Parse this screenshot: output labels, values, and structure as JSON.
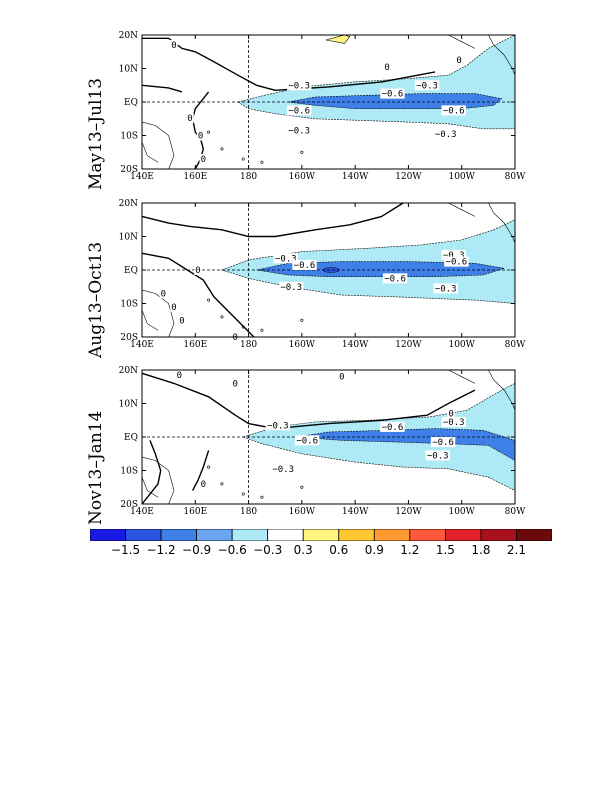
{
  "panels": [
    {
      "id": "p1",
      "label": "May13–Jul13"
    },
    {
      "id": "p2",
      "label": "Aug13–Oct13"
    },
    {
      "id": "p3",
      "label": "Nov13–Jan14"
    }
  ],
  "lat_ticks": [
    "20N",
    "10N",
    "EQ",
    "10S",
    "20S"
  ],
  "lon_ticks": [
    "140E",
    "160E",
    "180",
    "160W",
    "140W",
    "120W",
    "100W",
    "80W"
  ],
  "contour_labels": {
    "zero": "0",
    "m03": "−0.3",
    "m06": "−0.6"
  },
  "colorbar": {
    "labels": [
      "−1.5",
      "−1.2",
      "−0.9",
      "−0.6",
      "−0.3",
      "0.3",
      "0.6",
      "0.9",
      "1.2",
      "1.5",
      "1.8",
      "2.1"
    ],
    "colors": [
      "#1a1ae6",
      "#2b55e0",
      "#3f7fe8",
      "#6aa6ef",
      "#aeeaf5",
      "#ffffff",
      "#fff580",
      "#ffc833",
      "#ff9a33",
      "#ff5a3c",
      "#e0222a",
      "#a8101c",
      "#6b0a0a"
    ]
  },
  "colors": {
    "m03": "#aeeaf5",
    "m06": "#3f7fe8",
    "m09": "#2b55e0",
    "p03": "#fff580",
    "land": "#ffffff"
  }
}
